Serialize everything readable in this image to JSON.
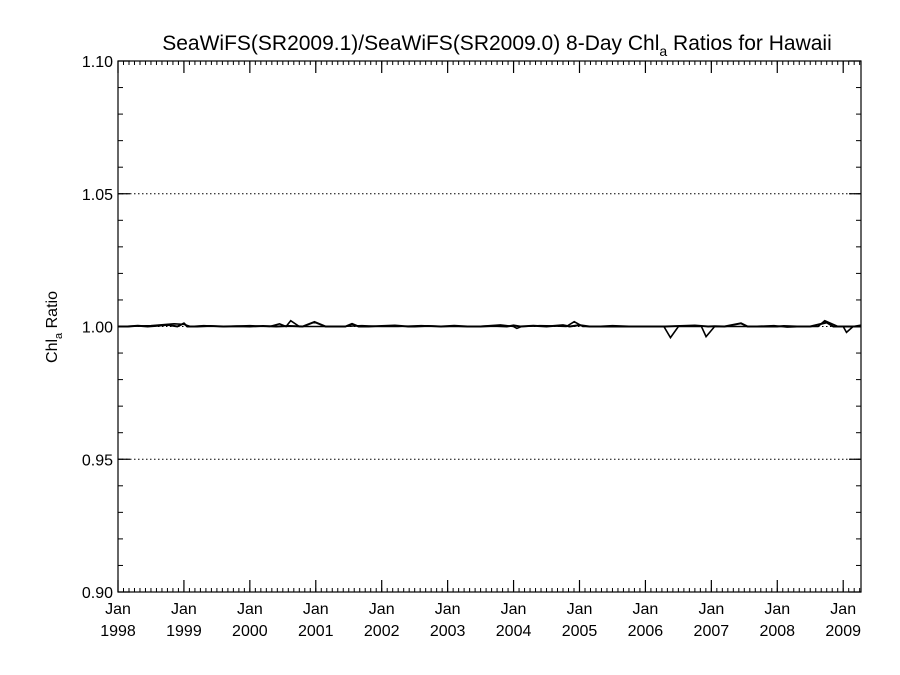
{
  "chart_data": {
    "type": "line",
    "title": {
      "prefix": "SeaWiFS(SR2009.1)/SeaWiFS(SR2009.0) 8-Day Chl",
      "subscript": "a",
      "suffix": " Ratios for Hawaii"
    },
    "ylabel": {
      "prefix": "Chl",
      "subscript": "a",
      "suffix": " Ratio"
    },
    "xlabel": "",
    "ylim": [
      0.9,
      1.1
    ],
    "xlim": [
      1998.0,
      2009.27
    ],
    "y_ticks": [
      {
        "value": 0.9,
        "label": "0.90"
      },
      {
        "value": 0.95,
        "label": "0.95"
      },
      {
        "value": 1.0,
        "label": "1.00"
      },
      {
        "value": 1.05,
        "label": "1.05"
      },
      {
        "value": 1.1,
        "label": "1.10"
      }
    ],
    "x_ticks": [
      {
        "value": 1998,
        "month": "Jan",
        "year": "1998"
      },
      {
        "value": 1999,
        "month": "Jan",
        "year": "1999"
      },
      {
        "value": 2000,
        "month": "Jan",
        "year": "2000"
      },
      {
        "value": 2001,
        "month": "Jan",
        "year": "2001"
      },
      {
        "value": 2002,
        "month": "Jan",
        "year": "2002"
      },
      {
        "value": 2003,
        "month": "Jan",
        "year": "2003"
      },
      {
        "value": 2004,
        "month": "Jan",
        "year": "2004"
      },
      {
        "value": 2005,
        "month": "Jan",
        "year": "2005"
      },
      {
        "value": 2006,
        "month": "Jan",
        "year": "2006"
      },
      {
        "value": 2007,
        "month": "Jan",
        "year": "2007"
      },
      {
        "value": 2008,
        "month": "Jan",
        "year": "2008"
      },
      {
        "value": 2009,
        "month": "Jan",
        "year": "2009"
      }
    ],
    "grid": {
      "horizontal_dotted_at": [
        0.95,
        1.0,
        1.05
      ]
    },
    "series": [
      {
        "points": [
          [
            1998.0,
            1.0
          ],
          [
            1998.15,
            1.0
          ],
          [
            1998.3,
            1.0003
          ],
          [
            1998.45,
            1.0
          ],
          [
            1998.6,
            1.0003
          ],
          [
            1998.75,
            1.0006
          ],
          [
            1998.9,
            1.0
          ],
          [
            1999.0,
            1.0012
          ],
          [
            1999.05,
            1.0
          ],
          [
            1999.2,
            1.0
          ],
          [
            1999.4,
            1.0002
          ],
          [
            1999.6,
            1.0
          ],
          [
            1999.8,
            1.0001
          ],
          [
            2000.0,
            1.0
          ],
          [
            2000.2,
            1.0002
          ],
          [
            2000.4,
            1.0
          ],
          [
            2000.6,
            1.0002
          ],
          [
            2000.8,
            1.0
          ],
          [
            2000.98,
            1.0017
          ],
          [
            2001.15,
            1.0
          ],
          [
            2001.3,
            1.0
          ],
          [
            2001.45,
            1.0
          ],
          [
            2001.55,
            1.001
          ],
          [
            2001.65,
            1.0
          ],
          [
            2001.8,
            1.0
          ],
          [
            2002.0,
            1.0002
          ],
          [
            2002.2,
            1.0004
          ],
          [
            2002.4,
            1.0
          ],
          [
            2002.5,
            1.0
          ],
          [
            2002.7,
            1.0002
          ],
          [
            2002.9,
            1.0
          ],
          [
            2003.1,
            1.0003
          ],
          [
            2003.3,
            1.0
          ],
          [
            2003.5,
            1.0
          ],
          [
            2003.7,
            1.0002
          ],
          [
            2003.9,
            1.0
          ],
          [
            2004.0,
            1.0004
          ],
          [
            2004.1,
            1.0
          ],
          [
            2004.3,
            1.0003
          ],
          [
            2004.5,
            1.0
          ],
          [
            2004.75,
            1.0005
          ],
          [
            2004.85,
            1.0
          ],
          [
            2005.0,
            1.0005
          ],
          [
            2005.15,
            1.0
          ],
          [
            2005.3,
            1.0
          ],
          [
            2005.5,
            1.0
          ],
          [
            2005.8,
            1.0
          ],
          [
            2006.0,
            1.0
          ],
          [
            2006.3,
            1.0
          ],
          [
            2006.75,
            1.0004
          ],
          [
            2006.95,
            1.0
          ],
          [
            2007.05,
            1.0001
          ],
          [
            2007.2,
            1.0
          ],
          [
            2007.45,
            1.0012
          ],
          [
            2007.55,
            1.0
          ],
          [
            2007.8,
            1.0
          ],
          [
            2008.0,
            1.0
          ],
          [
            2008.1,
            1.0002
          ],
          [
            2008.3,
            1.0
          ],
          [
            2008.5,
            1.0
          ],
          [
            2008.75,
            1.0015
          ],
          [
            2008.85,
            1.0
          ],
          [
            2009.0,
            1.0
          ],
          [
            2009.1,
            1.0
          ],
          [
            2009.27,
            1.0
          ]
        ],
        "color": "#000000",
        "stroke_width": 2
      },
      {
        "points": [
          [
            1998.0,
            1.0
          ],
          [
            1998.5,
            1.0003
          ],
          [
            1998.85,
            1.001
          ],
          [
            1999.0,
            1.0008
          ],
          [
            1999.1,
            1.0
          ],
          [
            1999.3,
            1.0003
          ],
          [
            1999.6,
            1.0
          ],
          [
            2000.0,
            1.0003
          ],
          [
            2000.3,
            1.0
          ],
          [
            2000.45,
            1.001
          ],
          [
            2000.55,
            1.0
          ],
          [
            2000.62,
            1.0022
          ],
          [
            2000.75,
            1.0
          ],
          [
            2001.0,
            1.0
          ],
          [
            2001.35,
            1.0
          ],
          [
            2001.7,
            1.0003
          ],
          [
            2002.0,
            1.0
          ],
          [
            2002.25,
            1.0
          ],
          [
            2002.6,
            1.0003
          ],
          [
            2002.95,
            1.0
          ],
          [
            2003.2,
            1.0
          ],
          [
            2003.45,
            1.0
          ],
          [
            2003.8,
            1.0006
          ],
          [
            2004.0,
            1.0
          ],
          [
            2004.05,
            0.9993
          ],
          [
            2004.12,
            1.0
          ],
          [
            2004.4,
            1.0003
          ],
          [
            2004.6,
            1.0002
          ],
          [
            2004.8,
            1.0
          ],
          [
            2004.92,
            1.0018
          ],
          [
            2005.05,
            1.0
          ],
          [
            2005.25,
            1.0
          ],
          [
            2005.5,
            1.0003
          ],
          [
            2005.85,
            1.0
          ],
          [
            2006.15,
            1.0
          ],
          [
            2006.28,
            1.0
          ],
          [
            2006.38,
            0.9958
          ],
          [
            2006.5,
            1.0
          ],
          [
            2006.85,
            1.0
          ],
          [
            2006.92,
            0.9962
          ],
          [
            2007.05,
            1.0
          ],
          [
            2007.3,
            1.0
          ],
          [
            2007.6,
            1.0
          ],
          [
            2007.95,
            1.0003
          ],
          [
            2008.15,
            0.9998
          ],
          [
            2008.4,
            1.0
          ],
          [
            2008.62,
            1.0
          ],
          [
            2008.72,
            1.0022
          ],
          [
            2008.92,
            1.0
          ],
          [
            2009.0,
            1.0
          ],
          [
            2009.05,
            0.9978
          ],
          [
            2009.15,
            1.0
          ],
          [
            2009.27,
            1.0005
          ]
        ],
        "color": "#000000",
        "stroke_width": 1.6
      }
    ]
  }
}
